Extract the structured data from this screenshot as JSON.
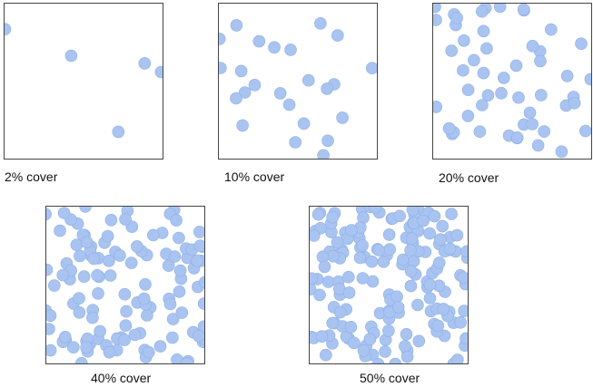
{
  "panels": [
    {
      "caption": "2% cover",
      "cover_percent": 2
    },
    {
      "caption": "10% cover",
      "cover_percent": 10
    },
    {
      "caption": "20% cover",
      "cover_percent": 20
    },
    {
      "caption": "40% cover",
      "cover_percent": 40
    },
    {
      "caption": "50% cover",
      "cover_percent": 50
    }
  ],
  "colors": {
    "dot_fill": "#A9C4F1",
    "dot_stroke": "#8FAFE6",
    "frame": "#444444"
  }
}
